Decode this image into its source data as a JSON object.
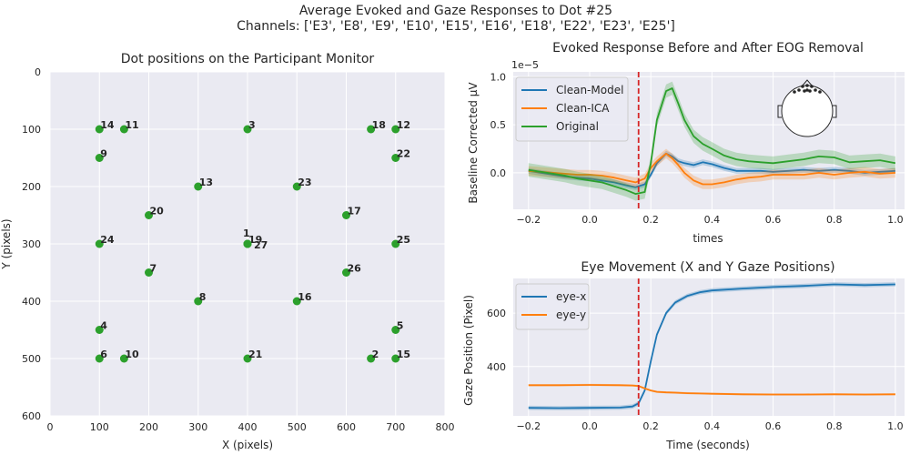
{
  "figure": {
    "suptitle_line1": "Average Evoked and Gaze Responses to Dot #25",
    "suptitle_line2": "Channels: ['E3', 'E8', 'E9', 'E10', 'E15', 'E16', 'E18', 'E22', 'E23', 'E25']"
  },
  "colors": {
    "blue": "#1f77b4",
    "orange": "#ff7f0e",
    "green": "#2ca02c",
    "red": "#d62728",
    "axes_bg": "#eaeaf2"
  },
  "chart_data": [
    {
      "type": "scatter",
      "title": "Dot positions on the Participant Monitor",
      "xlabel": "X (pixels)",
      "ylabel": "Y (pixels)",
      "xlim": [
        0,
        800
      ],
      "ylim": [
        600,
        0
      ],
      "y_inverted": true,
      "xticks": [
        "0",
        "100",
        "200",
        "300",
        "400",
        "500",
        "600",
        "700",
        "800"
      ],
      "yticks": [
        "0",
        "100",
        "200",
        "300",
        "400",
        "500",
        "600"
      ],
      "grid": true,
      "color": "#2ca02c",
      "points": [
        {
          "label": "1",
          "x": 400,
          "y": 300
        },
        {
          "label": "2",
          "x": 650,
          "y": 500
        },
        {
          "label": "3",
          "x": 400,
          "y": 100
        },
        {
          "label": "4",
          "x": 100,
          "y": 450
        },
        {
          "label": "5",
          "x": 700,
          "y": 450
        },
        {
          "label": "6",
          "x": 100,
          "y": 500
        },
        {
          "label": "7",
          "x": 200,
          "y": 350
        },
        {
          "label": "8",
          "x": 300,
          "y": 400
        },
        {
          "label": "9",
          "x": 100,
          "y": 150
        },
        {
          "label": "10",
          "x": 150,
          "y": 500
        },
        {
          "label": "11",
          "x": 150,
          "y": 100
        },
        {
          "label": "12",
          "x": 700,
          "y": 100
        },
        {
          "label": "13",
          "x": 300,
          "y": 200
        },
        {
          "label": "14",
          "x": 100,
          "y": 100
        },
        {
          "label": "15",
          "x": 700,
          "y": 500
        },
        {
          "label": "16",
          "x": 500,
          "y": 400
        },
        {
          "label": "17",
          "x": 600,
          "y": 250
        },
        {
          "label": "18",
          "x": 650,
          "y": 100
        },
        {
          "label": "19",
          "x": 400,
          "y": 300
        },
        {
          "label": "20",
          "x": 200,
          "y": 250
        },
        {
          "label": "21",
          "x": 400,
          "y": 500
        },
        {
          "label": "22",
          "x": 700,
          "y": 150
        },
        {
          "label": "23",
          "x": 500,
          "y": 200
        },
        {
          "label": "24",
          "x": 100,
          "y": 300
        },
        {
          "label": "25",
          "x": 700,
          "y": 300
        },
        {
          "label": "26",
          "x": 600,
          "y": 350
        },
        {
          "label": "27",
          "x": 400,
          "y": 300
        }
      ]
    },
    {
      "type": "line",
      "title": "Evoked Response Before and After EOG Removal",
      "xlabel": "times",
      "ylabel": "Baseline Corrected µV",
      "y_offset_label": "1e−5",
      "xlim": [
        -0.25,
        1.03
      ],
      "ylim": [
        -0.38,
        1.05
      ],
      "xticks": [
        -0.2,
        0.0,
        0.2,
        0.4,
        0.6,
        0.8,
        1.0
      ],
      "xtick_labels": [
        "−0.2",
        "0.0",
        "0.2",
        "0.4",
        "0.6",
        "0.8",
        "1.0"
      ],
      "yticks": [
        0.0,
        0.5,
        1.0
      ],
      "ytick_labels": [
        "0.0",
        "0.5",
        "1.0"
      ],
      "grid": true,
      "legend_position": "top-left",
      "vline_x": 0.16,
      "x": [
        -0.2,
        -0.16,
        -0.12,
        -0.08,
        -0.04,
        0.0,
        0.04,
        0.08,
        0.12,
        0.15,
        0.18,
        0.2,
        0.22,
        0.25,
        0.27,
        0.29,
        0.31,
        0.34,
        0.37,
        0.4,
        0.44,
        0.48,
        0.52,
        0.56,
        0.6,
        0.65,
        0.7,
        0.75,
        0.8,
        0.85,
        0.9,
        0.95,
        1.0
      ],
      "series": [
        {
          "name": "Clean-Model",
          "color": "#1f77b4",
          "band": 0.03,
          "values": [
            0.02,
            0.0,
            -0.02,
            -0.04,
            -0.05,
            -0.06,
            -0.08,
            -0.1,
            -0.13,
            -0.15,
            -0.12,
            -0.02,
            0.1,
            0.2,
            0.17,
            0.12,
            0.1,
            0.08,
            0.11,
            0.09,
            0.05,
            0.02,
            0.02,
            0.02,
            0.01,
            0.02,
            0.03,
            0.02,
            0.03,
            0.02,
            0.0,
            0.01,
            0.02
          ]
        },
        {
          "name": "Clean-ICA",
          "color": "#ff7f0e",
          "band": 0.05,
          "values": [
            0.02,
            0.01,
            0.0,
            -0.01,
            -0.02,
            -0.02,
            -0.03,
            -0.05,
            -0.08,
            -0.1,
            -0.06,
            0.05,
            0.12,
            0.2,
            0.15,
            0.08,
            0.0,
            -0.08,
            -0.12,
            -0.12,
            -0.1,
            -0.07,
            -0.05,
            -0.04,
            -0.02,
            -0.02,
            -0.02,
            0.0,
            -0.02,
            0.0,
            0.01,
            -0.01,
            0.0
          ]
        },
        {
          "name": "Original",
          "color": "#2ca02c",
          "band": 0.07,
          "values": [
            0.03,
            0.01,
            -0.01,
            -0.03,
            -0.06,
            -0.08,
            -0.1,
            -0.14,
            -0.18,
            -0.22,
            -0.2,
            0.1,
            0.55,
            0.85,
            0.88,
            0.72,
            0.55,
            0.38,
            0.3,
            0.25,
            0.18,
            0.14,
            0.12,
            0.11,
            0.1,
            0.12,
            0.14,
            0.17,
            0.16,
            0.11,
            0.12,
            0.13,
            0.1
          ]
        }
      ]
    },
    {
      "type": "line",
      "title": "Eye Movement (X and Y Gaze Positions)",
      "xlabel": "Time (seconds)",
      "ylabel": "Gaze Position (Pixel)",
      "xlim": [
        -0.25,
        1.03
      ],
      "ylim": [
        215,
        730
      ],
      "xticks": [
        -0.2,
        0.0,
        0.2,
        0.4,
        0.6,
        0.8,
        1.0
      ],
      "xtick_labels": [
        "−0.2",
        "0.0",
        "0.2",
        "0.4",
        "0.6",
        "0.8",
        "1.0"
      ],
      "yticks": [
        400,
        600
      ],
      "ytick_labels": [
        "400",
        "600"
      ],
      "grid": true,
      "legend_position": "top-left",
      "vline_x": 0.16,
      "x": [
        -0.2,
        -0.1,
        0.0,
        0.1,
        0.14,
        0.16,
        0.18,
        0.2,
        0.22,
        0.25,
        0.28,
        0.32,
        0.36,
        0.4,
        0.5,
        0.6,
        0.7,
        0.8,
        0.9,
        1.0
      ],
      "series": [
        {
          "name": "eye-x",
          "color": "#1f77b4",
          "band": 8,
          "values": [
            245,
            244,
            245,
            246,
            250,
            262,
            310,
            420,
            520,
            600,
            640,
            665,
            678,
            685,
            692,
            698,
            702,
            708,
            705,
            708
          ]
        },
        {
          "name": "eye-y",
          "color": "#ff7f0e",
          "band": 4,
          "values": [
            330,
            330,
            331,
            330,
            329,
            327,
            318,
            310,
            305,
            303,
            302,
            300,
            299,
            298,
            296,
            295,
            295,
            296,
            295,
            296
          ]
        }
      ]
    }
  ]
}
